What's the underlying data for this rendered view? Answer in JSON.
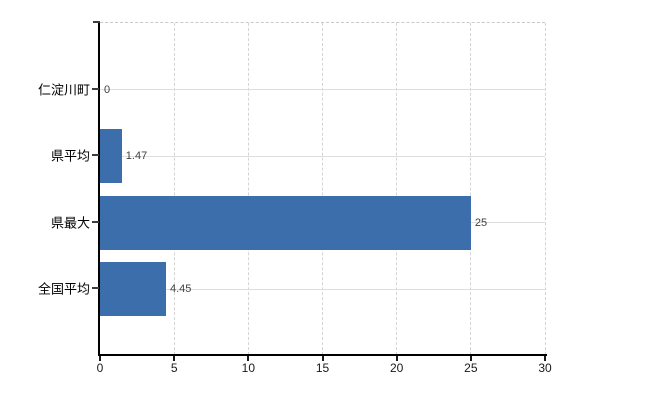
{
  "chart_data": {
    "type": "bar",
    "orientation": "horizontal",
    "title": "",
    "xlabel": "",
    "ylabel": "",
    "categories": [
      "仁淀川町",
      "県平均",
      "県最大",
      "全国平均"
    ],
    "values": [
      0,
      1.47,
      25,
      4.45
    ],
    "value_labels": [
      "0",
      "1.47",
      "25",
      "4.45"
    ],
    "xlim": [
      0,
      30
    ],
    "x_ticks": [
      0,
      5,
      10,
      15,
      20,
      25,
      30
    ],
    "grid": true,
    "legend": false,
    "bar_color": "#3c6eac"
  },
  "colors": {
    "bar": "#3c6eac",
    "axis": "#000000",
    "vertical_gridline": "#d4d4d4",
    "horizontal_gridline": "#dce0dc",
    "plot_top_border": "#c9c9c9",
    "value_label_text": "#404040",
    "tick_label_text": "#1a1a1a",
    "category_label_text": "#000000",
    "background": "#ffffff"
  }
}
